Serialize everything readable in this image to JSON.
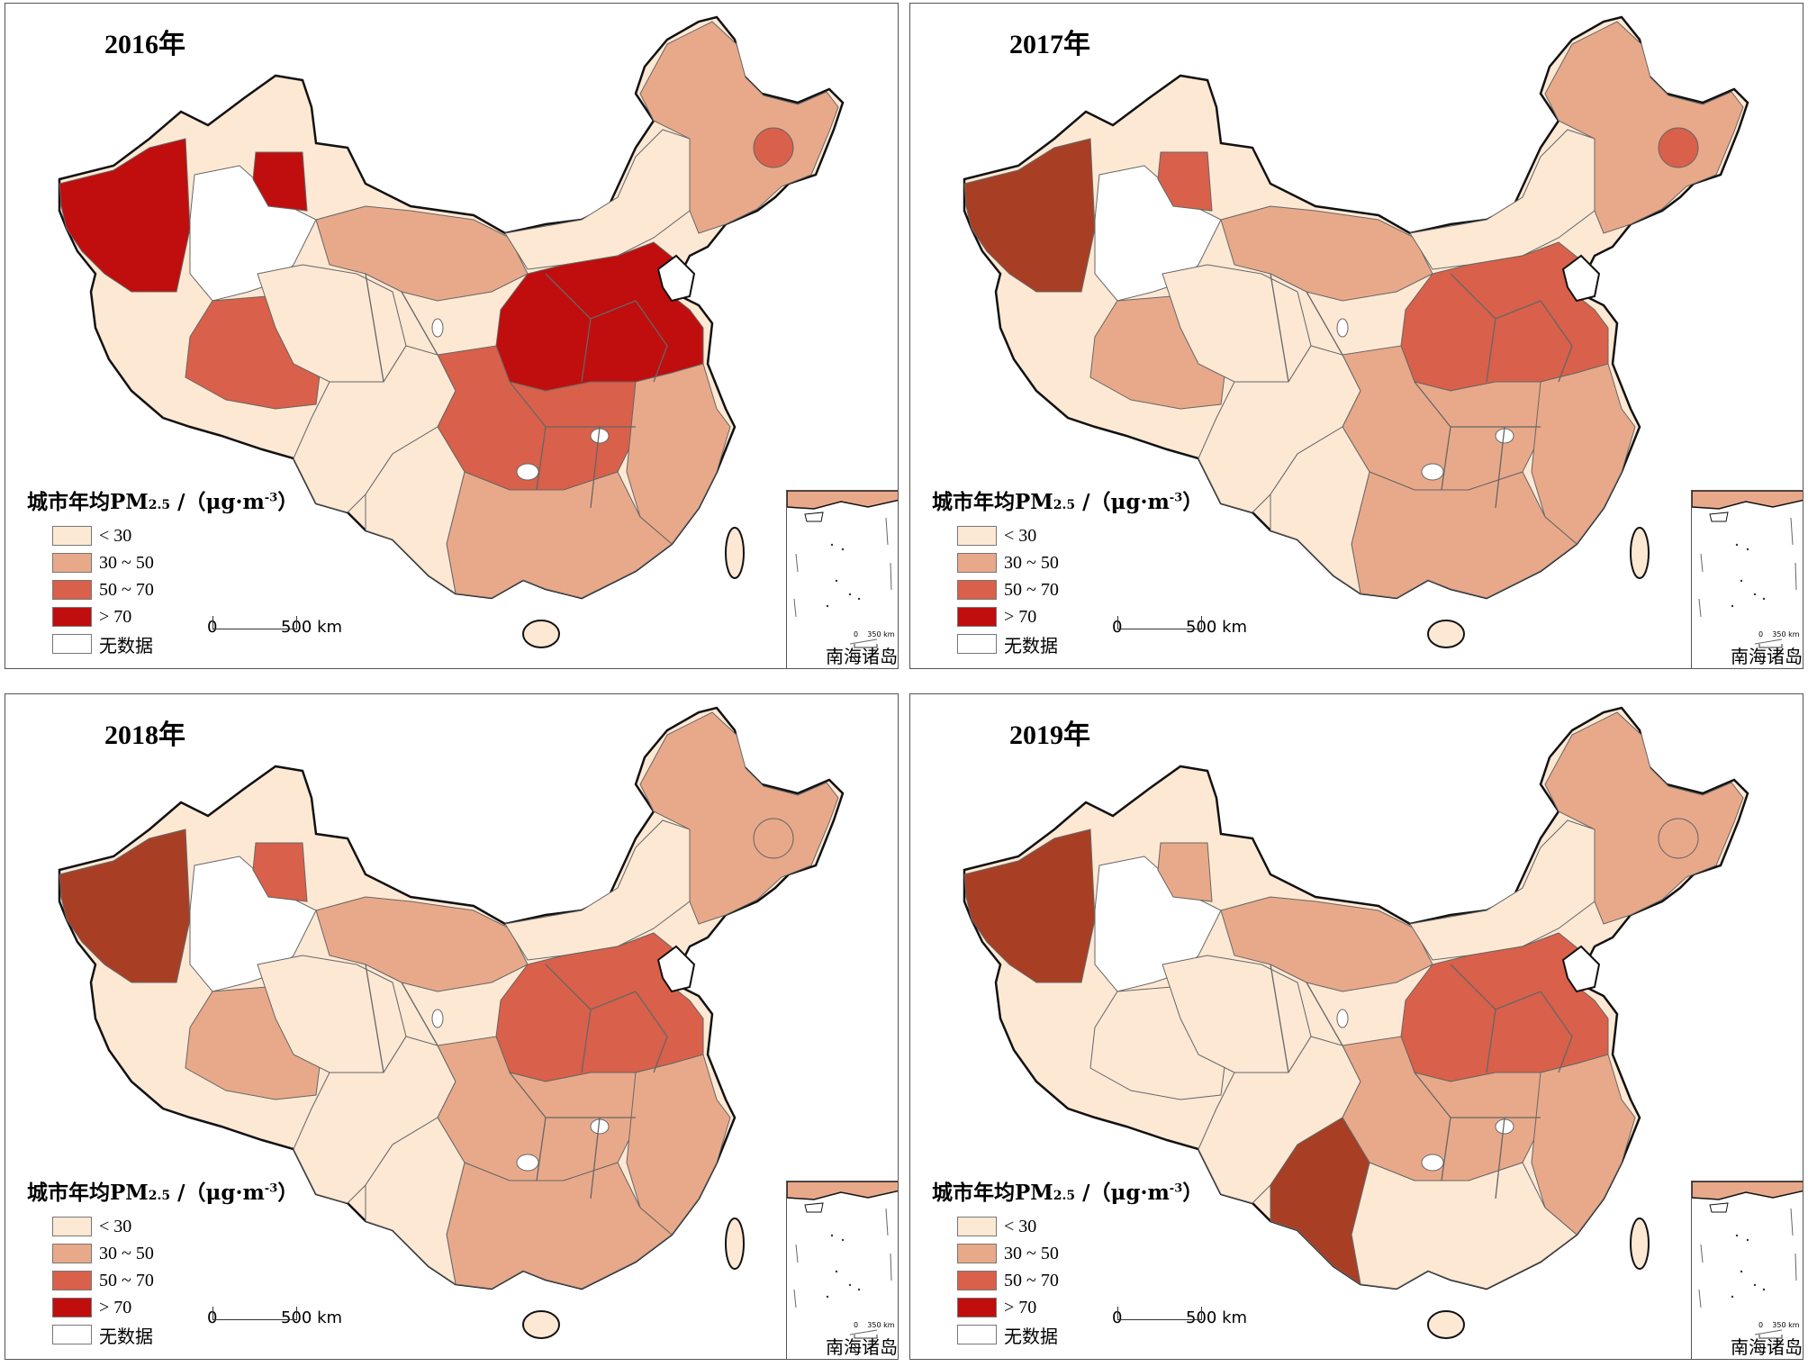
{
  "figure": {
    "panels": [
      {
        "year": "2016年",
        "fills": {
          "nw": "#c00d0d",
          "north_xj": "#c00d0d",
          "tibet": "#d9604a",
          "north_china": "#c00d0d",
          "central": "#d9604a",
          "east": "#e8a98a",
          "south": "#e8a98a",
          "northeast": "#e8a98a",
          "ne_hot": "#d9604a",
          "inner_mongolia": "#fde8d4",
          "qinghai": "#fde8d4",
          "west": "#fde8d4",
          "gansu": "#e8a98a",
          "sichuan": "#fde8d4",
          "yunnan": "#fde8d4"
        }
      },
      {
        "year": "2017年",
        "fills": {
          "nw": "#a83f25",
          "north_xj": "#d9604a",
          "tibet": "#e8a98a",
          "north_china": "#d9604a",
          "central": "#e8a98a",
          "east": "#e8a98a",
          "south": "#e8a98a",
          "northeast": "#e8a98a",
          "ne_hot": "#d9604a",
          "inner_mongolia": "#fde8d4",
          "qinghai": "#fde8d4",
          "west": "#fde8d4",
          "gansu": "#e8a98a",
          "sichuan": "#fde8d4",
          "yunnan": "#fde8d4"
        }
      },
      {
        "year": "2018年",
        "fills": {
          "nw": "#a83f25",
          "north_xj": "#d9604a",
          "tibet": "#e8a98a",
          "north_china": "#d9604a",
          "central": "#e8a98a",
          "east": "#e8a98a",
          "south": "#e8a98a",
          "northeast": "#e8a98a",
          "ne_hot": "#e8a98a",
          "inner_mongolia": "#fde8d4",
          "qinghai": "#fde8d4",
          "west": "#fde8d4",
          "gansu": "#e8a98a",
          "sichuan": "#fde8d4",
          "yunnan": "#fde8d4"
        }
      },
      {
        "year": "2019年",
        "fills": {
          "nw": "#a83f25",
          "north_xj": "#e8a98a",
          "tibet": "#fde8d4",
          "north_china": "#d9604a",
          "central": "#e8a98a",
          "east": "#e8a98a",
          "south": "#fde8d4",
          "northeast": "#e8a98a",
          "ne_hot": "#e8a98a",
          "inner_mongolia": "#fde8d4",
          "qinghai": "#fde8d4",
          "west": "#fde8d4",
          "gansu": "#e8a98a",
          "sichuan": "#fde8d4",
          "yunnan": "#a83f25"
        }
      }
    ],
    "legend": {
      "title_main": "城市年均PM",
      "title_sub": "2.5",
      "title_unit_a": " /（μg·m",
      "title_unit_sup": "-3",
      "title_unit_b": "）",
      "items": [
        {
          "label": "< 30",
          "color": "#fde8d4"
        },
        {
          "label": "30 ~ 50",
          "color": "#e8a98a"
        },
        {
          "label": "50 ~ 70",
          "color": "#d9604a"
        },
        {
          "label": "> 70",
          "color": "#c00d0d"
        },
        {
          "label": "无数据",
          "color": "#ffffff"
        }
      ]
    },
    "scale": {
      "zero": "0",
      "distance": "500 km"
    },
    "inset": {
      "label": "南海诸岛",
      "scale_zero": "0",
      "scale_distance": "350 km"
    },
    "colors": {
      "border": "#111111",
      "boundary": "#666666",
      "no_data": "#ffffff"
    }
  }
}
